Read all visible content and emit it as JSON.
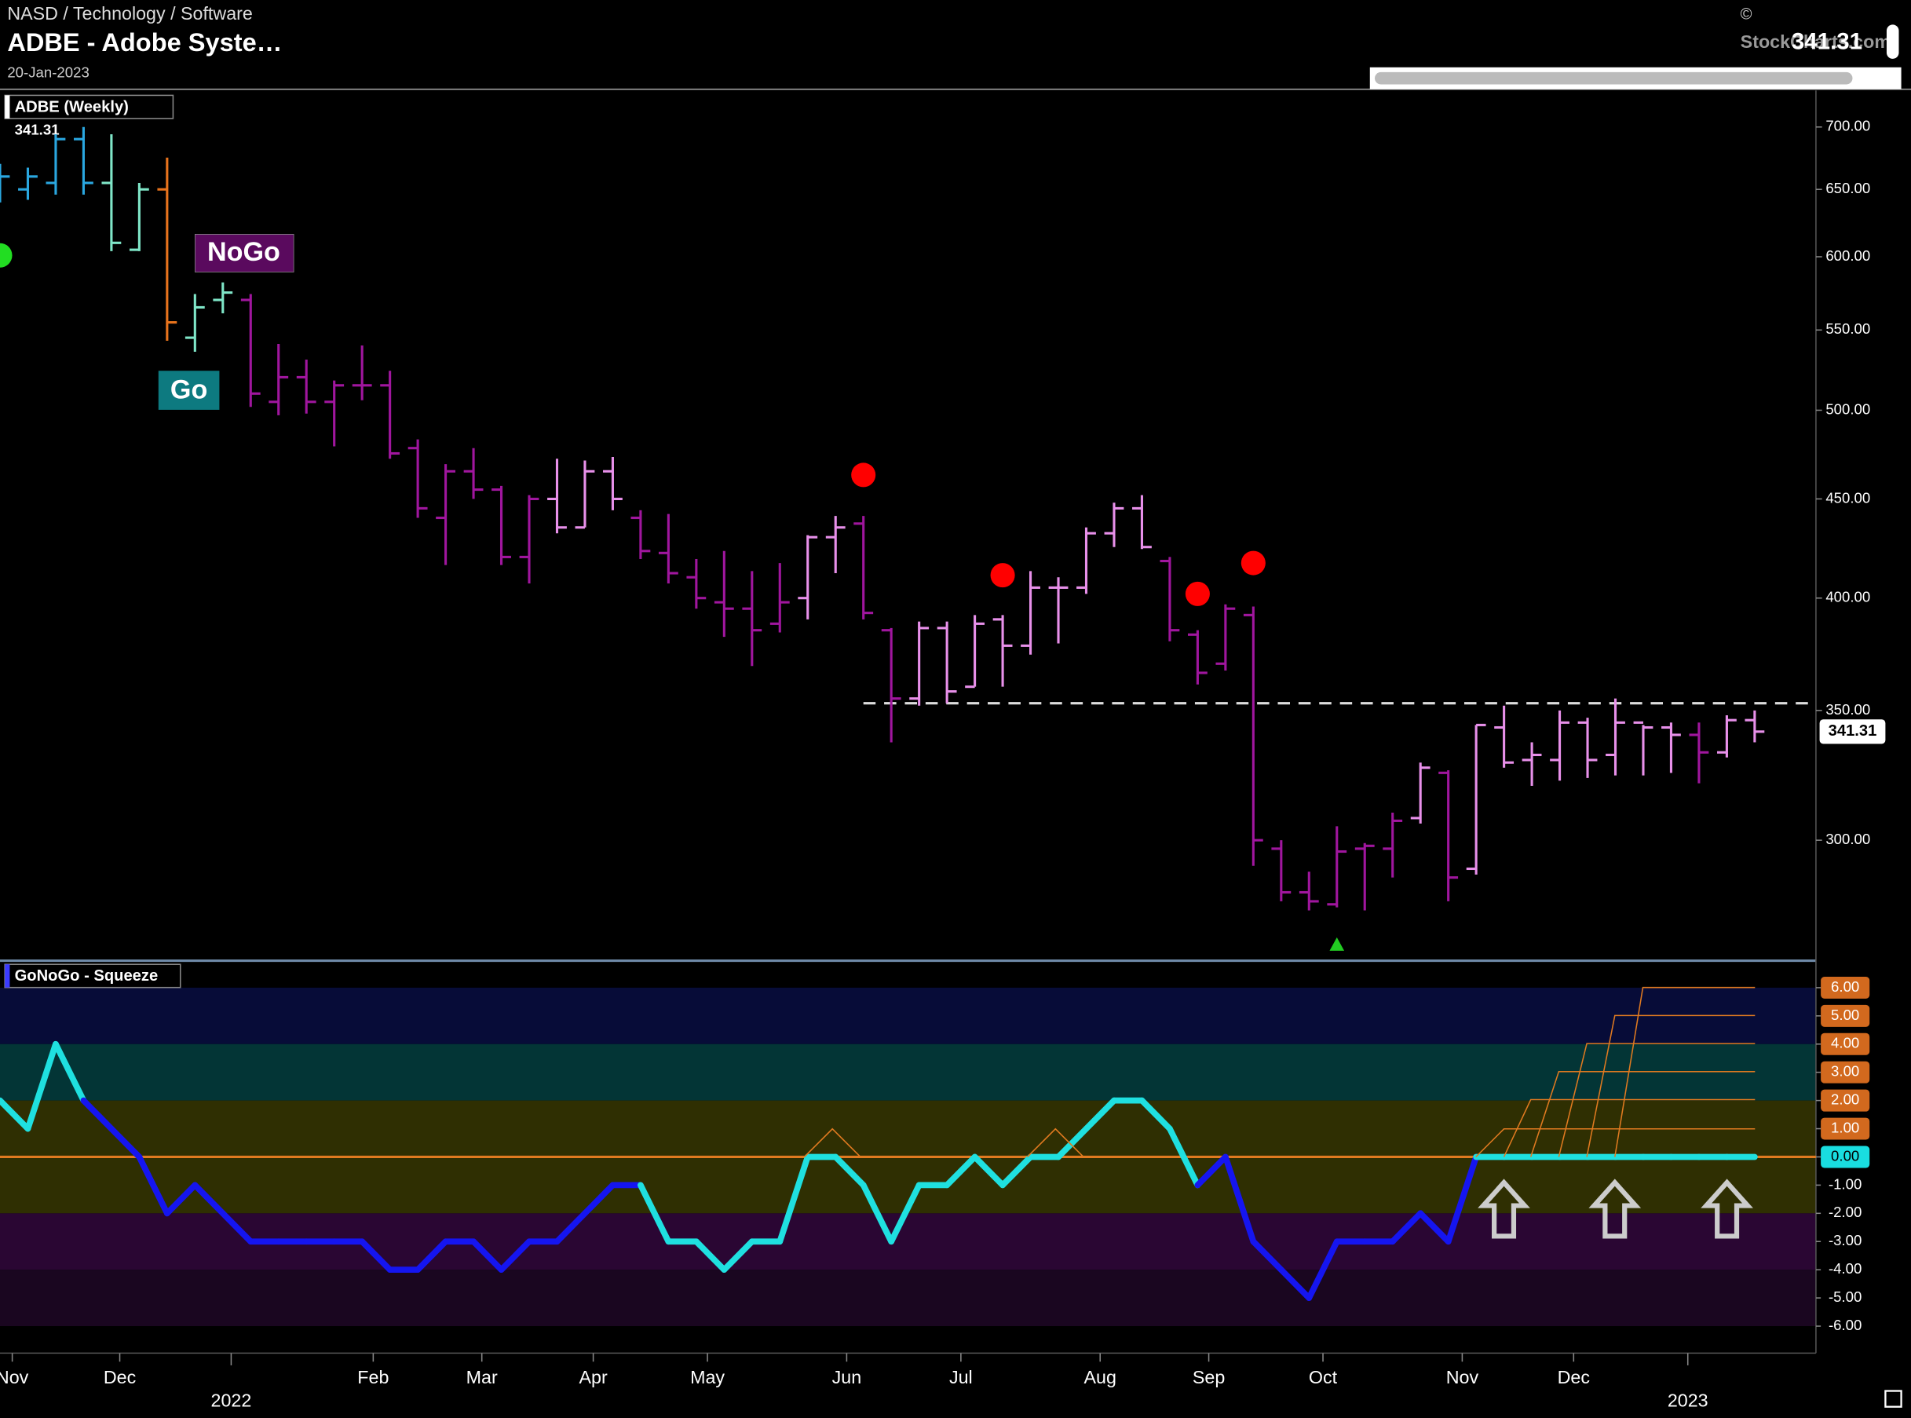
{
  "header": {
    "path": "NASD / Technology / Software",
    "title": "ADBE - Adobe Syste…",
    "date": "20-Jan-2023",
    "copyright": "©",
    "source": "StockCharts.com",
    "last": "341.31"
  },
  "chart_data": [
    {
      "type": "ohlc",
      "title": "ADBE (Weekly)",
      "last_label": "341.31",
      "annotations": [
        "NoGo",
        "Go"
      ],
      "categories": [
        null,
        null,
        null,
        null,
        null,
        null,
        null,
        null,
        null,
        null,
        null,
        null,
        null,
        null,
        null,
        null,
        null,
        null,
        null,
        null,
        null,
        null,
        null,
        null,
        null,
        null,
        null,
        null,
        null,
        null,
        null,
        null,
        null,
        null,
        null,
        null,
        null,
        null,
        null,
        null,
        null,
        null,
        null,
        null,
        null,
        null,
        null,
        null,
        null,
        null,
        null,
        null,
        null,
        null,
        null,
        null,
        null,
        null,
        null,
        null,
        null,
        null,
        null,
        null
      ],
      "open": [
        650,
        650,
        655,
        690,
        655,
        605,
        650,
        545,
        570,
        570,
        505,
        520,
        505,
        515,
        515,
        478,
        440,
        465,
        455,
        420,
        450,
        435,
        465,
        440,
        422,
        410,
        398,
        395,
        388,
        400,
        430,
        437,
        385,
        355,
        386,
        360,
        390,
        378,
        405,
        405,
        432,
        445,
        418,
        383,
        370,
        392,
        297,
        282,
        278,
        297,
        297,
        308,
        325,
        290,
        343,
        330,
        330,
        345,
        332,
        345,
        343,
        340,
        333,
        346
      ],
      "high": [
        670,
        667,
        694,
        700,
        694,
        655,
        675,
        574,
        582,
        574,
        541,
        531,
        518,
        540,
        524,
        483,
        469,
        478,
        457,
        452,
        472,
        471,
        473,
        444,
        442,
        419,
        423,
        413,
        417,
        431,
        441,
        441,
        386,
        389,
        389,
        392,
        392,
        413,
        410,
        435,
        448,
        452,
        420,
        385,
        397,
        396,
        300,
        289,
        305,
        299,
        310,
        329,
        326,
        344,
        352,
        337,
        350,
        347,
        355,
        344,
        345,
        345,
        348,
        350
      ],
      "low": [
        640,
        642,
        646,
        646,
        604,
        604,
        543,
        536,
        561,
        502,
        497,
        498,
        479,
        506,
        472,
        440,
        416,
        450,
        416,
        407,
        432,
        435,
        444,
        419,
        407,
        395,
        382,
        369,
        384,
        390,
        412,
        390,
        337,
        352,
        353,
        360,
        360,
        374,
        379,
        402,
        425,
        424,
        380,
        361,
        367,
        291,
        279,
        276,
        277,
        276,
        287,
        306,
        279,
        288,
        327,
        320,
        322,
        323,
        324,
        324,
        325,
        321,
        331,
        337
      ],
      "close": [
        660,
        660,
        690,
        655,
        610,
        650,
        555,
        565,
        575,
        510,
        520,
        505,
        515,
        515,
        475,
        445,
        465,
        455,
        420,
        450,
        435,
        465,
        450,
        423,
        412,
        400,
        395,
        385,
        398,
        430,
        435,
        393,
        355,
        386,
        358,
        388,
        378,
        405,
        405,
        432,
        445,
        425,
        385,
        366,
        395,
        300,
        282,
        279,
        296,
        298,
        307,
        327,
        287,
        344,
        329,
        332,
        345,
        330,
        345,
        343,
        340,
        333,
        346,
        341.31
      ],
      "colors": [
        "#2aa7e0",
        "#2aa7e0",
        "#2aa7e0",
        "#2aa7e0",
        "#7fe6c8",
        "#7fe6c8",
        "#e8731c",
        "#7fe6c8",
        "#7fe6c8",
        "#a0169e",
        "#a0169e",
        "#a0169e",
        "#a0169e",
        "#a0169e",
        "#a0169e",
        "#a0169e",
        "#a0169e",
        "#a0169e",
        "#a0169e",
        "#a0169e",
        "#e890ea",
        "#e890ea",
        "#e890ea",
        "#a0169e",
        "#a0169e",
        "#a0169e",
        "#a0169e",
        "#a0169e",
        "#a0169e",
        "#e890ea",
        "#e890ea",
        "#a0169e",
        "#a0169e",
        "#e890ea",
        "#e890ea",
        "#e890ea",
        "#e890ea",
        "#e890ea",
        "#e890ea",
        "#e890ea",
        "#e890ea",
        "#e890ea",
        "#a0169e",
        "#a0169e",
        "#a0169e",
        "#a0169e",
        "#a0169e",
        "#a0169e",
        "#a0169e",
        "#a0169e",
        "#a0169e",
        "#e890ea",
        "#a0169e",
        "#e890ea",
        "#e890ea",
        "#e890ea",
        "#e890ea",
        "#e890ea",
        "#e890ea",
        "#e890ea",
        "#e890ea",
        "#a0169e",
        "#e890ea",
        "#e890ea"
      ],
      "log_scale": true,
      "xlim": [
        0,
        65.2
      ],
      "ylim": [
        260,
        730
      ],
      "yticks": [
        {
          "value": 300,
          "label": "300.00"
        },
        {
          "value": 350,
          "label": "350.00"
        },
        {
          "value": 400,
          "label": "400.00"
        },
        {
          "value": 450,
          "label": "450.00"
        },
        {
          "value": 500,
          "label": "500.00"
        },
        {
          "value": 550,
          "label": "550.00"
        },
        {
          "value": 600,
          "label": "600.00"
        },
        {
          "value": 650,
          "label": "650.00"
        },
        {
          "value": 700,
          "label": "700.00"
        }
      ],
      "resistance": {
        "value": 353,
        "from": 31
      },
      "signals": [
        {
          "name": "nogo",
          "color": "#ff0000",
          "x": [
            31,
            36,
            43,
            45
          ],
          "values": [
            463,
            411,
            402,
            417
          ]
        },
        {
          "name": "go",
          "color": "#22dd22",
          "x": [
            0
          ],
          "values": [
            601
          ]
        }
      ],
      "triangles": {
        "color": "#22cc22",
        "x": [
          48
        ],
        "values": [
          265
        ]
      }
    },
    {
      "type": "line",
      "title": "GoNoGo - Squeeze",
      "values": [
        2,
        1,
        4,
        2,
        1,
        0,
        -2,
        -1,
        -2,
        -3,
        -3,
        -3,
        -3,
        -3,
        -4,
        -4,
        -3,
        -3,
        -4,
        -3,
        -3,
        -2,
        -1,
        -1,
        -3,
        -3,
        -4,
        -3,
        -3,
        0,
        0,
        -1,
        -3,
        -1,
        -1,
        0,
        -1,
        0,
        0,
        1,
        2,
        2,
        1,
        -1,
        0,
        -3,
        -4,
        -5,
        -3,
        -3,
        -3,
        -2,
        -3,
        0,
        0,
        0,
        0,
        0,
        0,
        0,
        0,
        0,
        0,
        0
      ],
      "point_colors": [
        "#1fe0e0",
        "#1fe0e0",
        "#1fe0e0",
        "#1fe0e0",
        "#1515f0",
        "#1515f0",
        "#1515f0",
        "#1515f0",
        "#1515f0",
        "#1515f0",
        "#1515f0",
        "#1515f0",
        "#1515f0",
        "#1515f0",
        "#1515f0",
        "#1515f0",
        "#1515f0",
        "#1515f0",
        "#1515f0",
        "#1515f0",
        "#1515f0",
        "#1515f0",
        "#1515f0",
        "#1515f0",
        "#1fe0e0",
        "#1fe0e0",
        "#1fe0e0",
        "#1fe0e0",
        "#1fe0e0",
        "#1fe0e0",
        "#1fe0e0",
        "#1fe0e0",
        "#1fe0e0",
        "#1fe0e0",
        "#1fe0e0",
        "#1fe0e0",
        "#1fe0e0",
        "#1fe0e0",
        "#1fe0e0",
        "#1fe0e0",
        "#1fe0e0",
        "#1fe0e0",
        "#1fe0e0",
        "#1fe0e0",
        "#1515f0",
        "#1515f0",
        "#1515f0",
        "#1515f0",
        "#1515f0",
        "#1515f0",
        "#1515f0",
        "#1515f0",
        "#1515f0",
        "#1515f0",
        "#1fe0e0",
        "#1fe0e0",
        "#1fe0e0",
        "#1fe0e0",
        "#1fe0e0",
        "#1fe0e0",
        "#1fe0e0",
        "#1fe0e0",
        "#1fe0e0",
        "#1fe0e0"
      ],
      "xlim": [
        0,
        65.2
      ],
      "ylim": [
        -7,
        7
      ],
      "yticks": [
        {
          "value": 6,
          "label": "6.00"
        },
        {
          "value": 5,
          "label": "5.00"
        },
        {
          "value": 4,
          "label": "4.00"
        },
        {
          "value": 3,
          "label": "3.00"
        },
        {
          "value": 2,
          "label": "2.00"
        },
        {
          "value": 1,
          "label": "1.00"
        },
        {
          "value": 0,
          "label": "0.00"
        },
        {
          "value": -1,
          "label": "-1.00"
        },
        {
          "value": -2,
          "label": "-2.00"
        },
        {
          "value": -3,
          "label": "-3.00"
        },
        {
          "value": -4,
          "label": "-4.00"
        },
        {
          "value": -5,
          "label": "-5.00"
        },
        {
          "value": -6,
          "label": "-6.00"
        }
      ],
      "zones": [
        {
          "from": 6,
          "to": 4,
          "color": "#070c38"
        },
        {
          "from": 4,
          "to": 2,
          "color": "#033536"
        },
        {
          "from": 2,
          "to": -2,
          "color": "#2f2f02"
        },
        {
          "from": -2,
          "to": -4,
          "color": "#2a0633"
        },
        {
          "from": -4,
          "to": -6,
          "color": "#1a0620"
        }
      ],
      "zero_color": "#e07a20",
      "positive_box_color": "#d2691e",
      "zero_box_color": "#19dde0",
      "xticks": [
        {
          "value": 0.44,
          "label": "Nov"
        },
        {
          "value": 4.3,
          "label": "Dec"
        },
        {
          "value": 13.4,
          "label": "Feb"
        },
        {
          "value": 17.3,
          "label": "Mar"
        },
        {
          "value": 21.3,
          "label": "Apr"
        },
        {
          "value": 25.4,
          "label": "May"
        },
        {
          "value": 30.4,
          "label": "Jun"
        },
        {
          "value": 34.5,
          "label": "Jul"
        },
        {
          "value": 39.5,
          "label": "Aug"
        },
        {
          "value": 43.4,
          "label": "Sep"
        },
        {
          "value": 47.5,
          "label": "Oct"
        },
        {
          "value": 52.5,
          "label": "Nov"
        },
        {
          "value": 56.5,
          "label": "Dec"
        }
      ],
      "year_ticks": [
        {
          "value": 8.3,
          "label": "2022"
        },
        {
          "value": 60.6,
          "label": "2023"
        }
      ]
    }
  ]
}
